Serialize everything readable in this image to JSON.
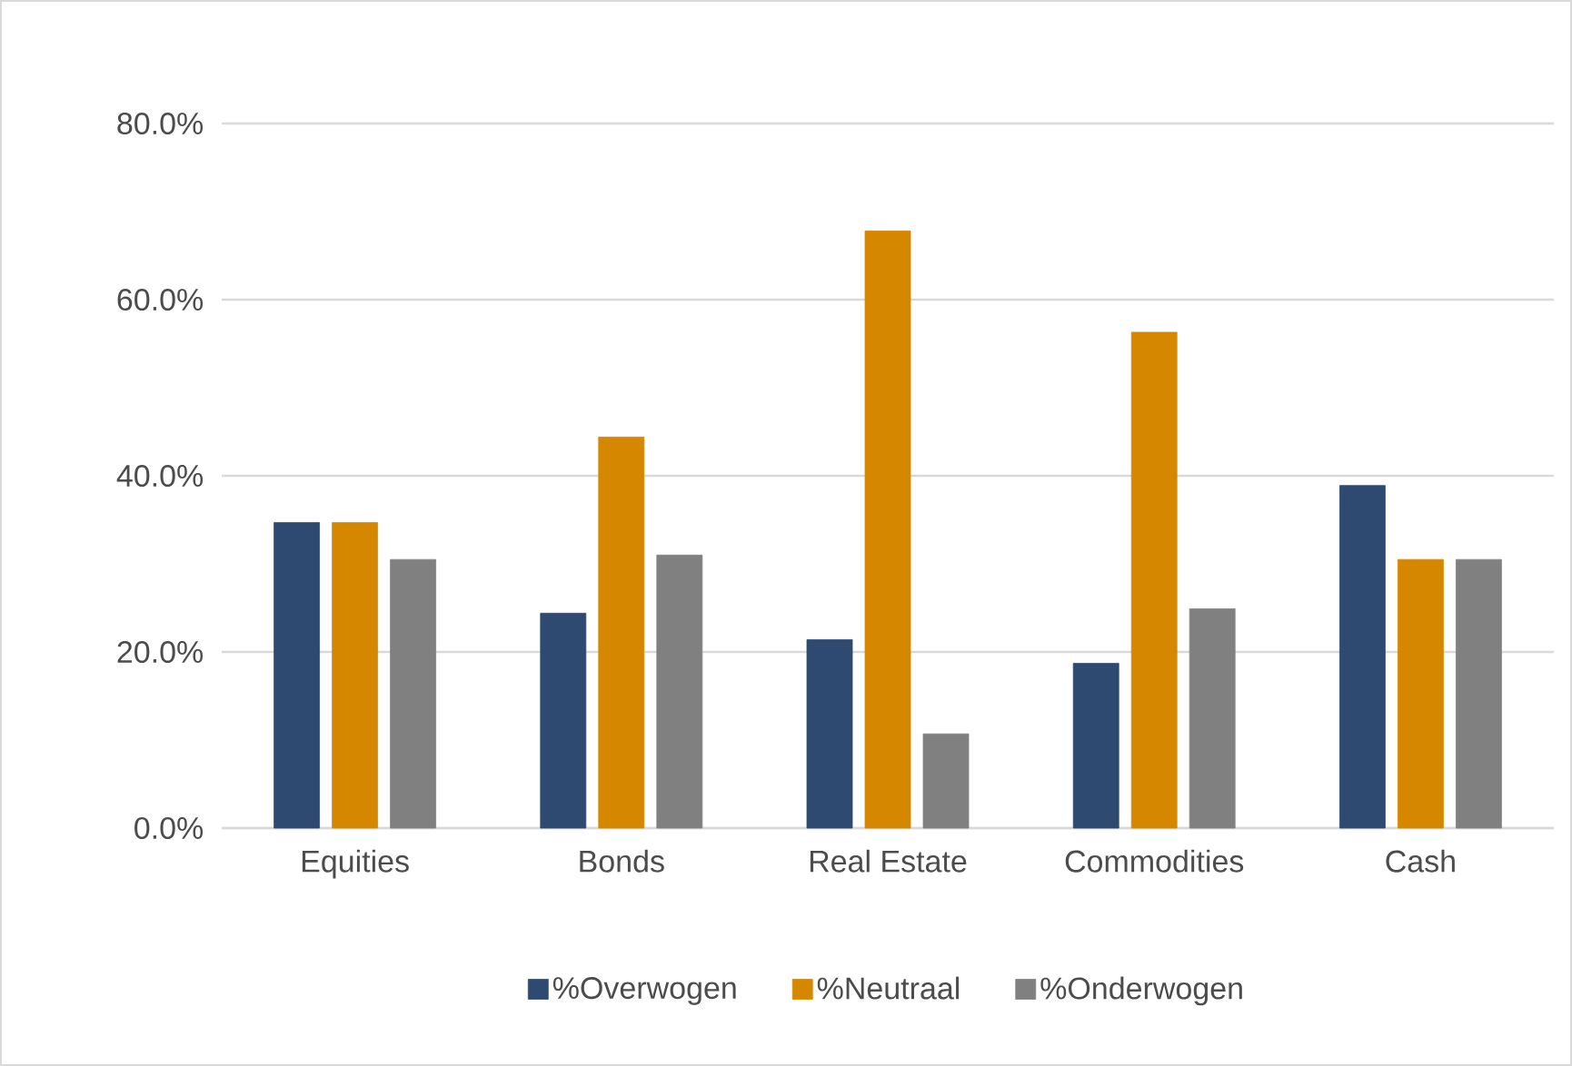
{
  "chart_data": {
    "type": "bar",
    "categories": [
      "Equities",
      "Bonds",
      "Real Estate",
      "Commodities",
      "Cash"
    ],
    "series": [
      {
        "name": "%Overwogen",
        "color": "#2e4a70",
        "values": [
          34.7,
          24.4,
          21.4,
          18.7,
          38.9
        ]
      },
      {
        "name": "%Neutraal",
        "color": "#d68700",
        "values": [
          34.7,
          44.4,
          67.8,
          56.3,
          30.5
        ]
      },
      {
        "name": "%Onderwogen",
        "color": "#808080",
        "values": [
          30.5,
          31.0,
          10.7,
          24.9,
          30.5
        ]
      }
    ],
    "ylim": [
      0,
      80
    ],
    "yticks": [
      {
        "value": 0,
        "label": "0.0%"
      },
      {
        "value": 20,
        "label": "20.0%"
      },
      {
        "value": 40,
        "label": "40.0%"
      },
      {
        "value": 60,
        "label": "60.0%"
      },
      {
        "value": 80,
        "label": "80.0%"
      }
    ],
    "grid": "y",
    "legend": "bottom"
  }
}
